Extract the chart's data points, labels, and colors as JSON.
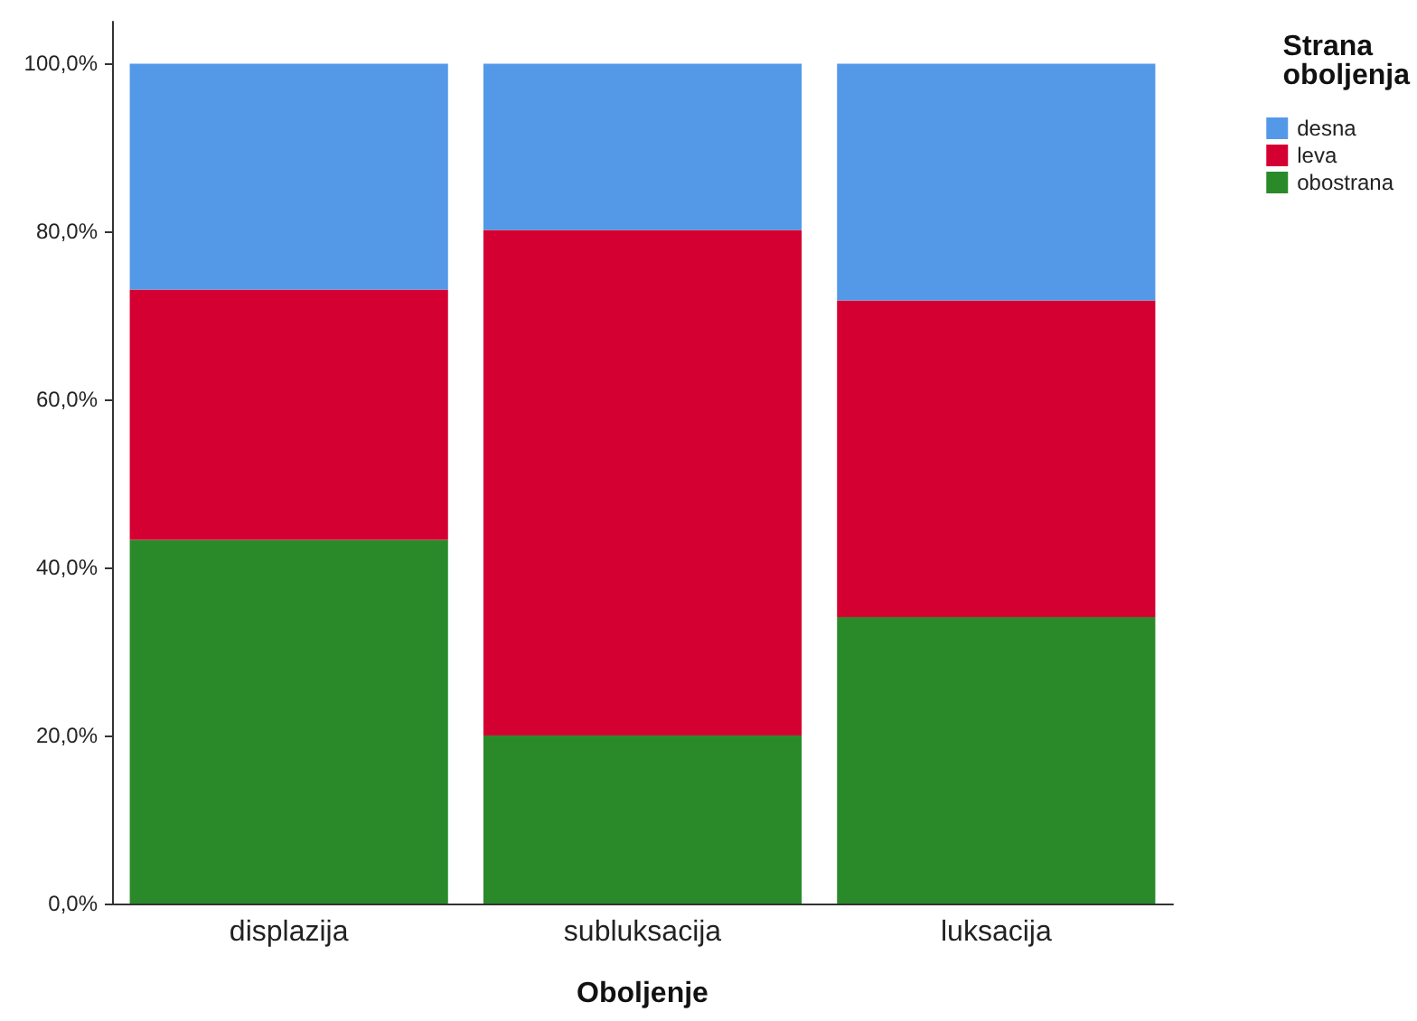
{
  "chart_data": {
    "type": "bar",
    "stacked": true,
    "xlabel": "Oboljenje",
    "legend_title": "Strana oboljenja",
    "legend": "top right",
    "grid": false,
    "categories": [
      "displazija",
      "subluksacija",
      "luksacija"
    ],
    "series": [
      {
        "name": "obostrana",
        "color": "#2a8a2a",
        "values": [
          43.3,
          20.0,
          34.1
        ]
      },
      {
        "name": "leva",
        "color": "#d50032",
        "values": [
          29.8,
          60.2,
          37.7
        ]
      },
      {
        "name": "desna",
        "color": "#5499e8",
        "values": [
          26.9,
          19.8,
          28.2
        ]
      }
    ],
    "ylim": [
      0,
      105
    ],
    "yticks": [
      {
        "value": 0,
        "label": "0,0%"
      },
      {
        "value": 20,
        "label": "20,0%"
      },
      {
        "value": 40,
        "label": "40,0%"
      },
      {
        "value": 60,
        "label": "60,0%"
      },
      {
        "value": 80,
        "label": "80,0%"
      },
      {
        "value": 100,
        "label": "100,0%"
      }
    ]
  }
}
